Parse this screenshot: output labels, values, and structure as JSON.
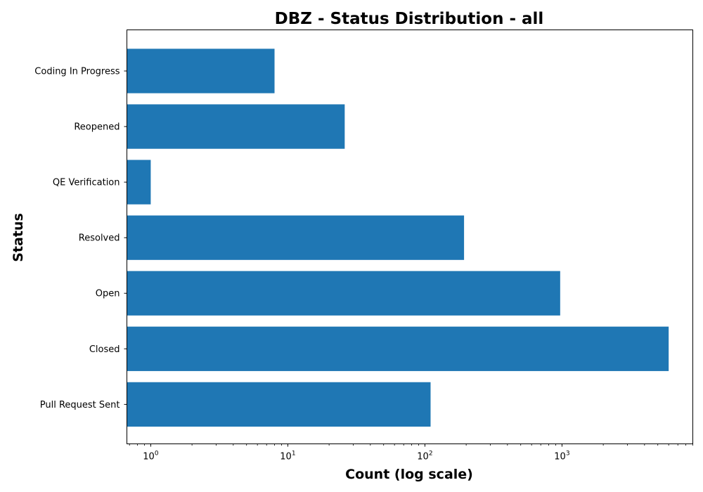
{
  "chart_data": {
    "type": "bar",
    "orientation": "horizontal",
    "title": "DBZ - Status Distribution - all",
    "xlabel": "Count (log scale)",
    "ylabel": "Status",
    "xscale": "log",
    "xlim": [
      0.67,
      9000
    ],
    "x_ticks": [
      {
        "value": 1,
        "base": "10",
        "exp": "0"
      },
      {
        "value": 10,
        "base": "10",
        "exp": "1"
      },
      {
        "value": 100,
        "base": "10",
        "exp": "2"
      },
      {
        "value": 1000,
        "base": "10",
        "exp": "3"
      }
    ],
    "categories": [
      "Coding In Progress",
      "Reopened",
      "QE Verification",
      "Resolved",
      "Open",
      "Closed",
      "Pull Request Sent"
    ],
    "values": [
      8,
      26,
      1,
      193,
      970,
      6000,
      110
    ],
    "bar_color": "#1f77b4",
    "grid": false,
    "legend": "none"
  }
}
